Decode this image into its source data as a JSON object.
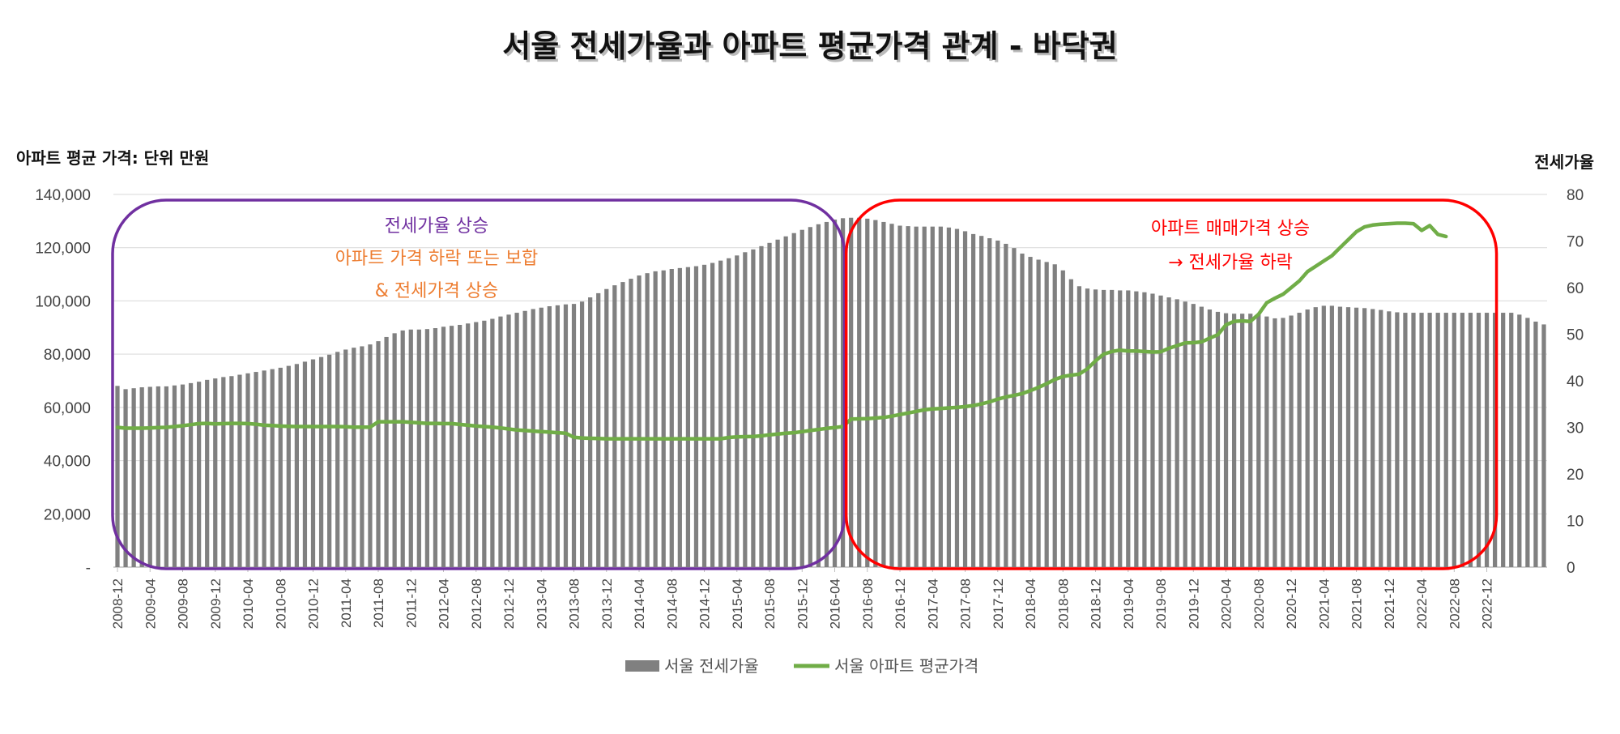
{
  "chart_data": {
    "type": "bar+line",
    "title": "서울 전세가율과 아파트 평균가격 관계 - 바닥권",
    "ylabel_left": "아파트 평균 가격: 단위 만원",
    "ylabel_right": "전세가율",
    "ylim_left": [
      0,
      140000
    ],
    "ylim_right": [
      0,
      80
    ],
    "left_ticks": [
      "-",
      "20,000",
      "40,000",
      "60,000",
      "80,000",
      "100,000",
      "120,000",
      "140,000"
    ],
    "right_ticks": [
      "0",
      "10",
      "20",
      "30",
      "40",
      "50",
      "60",
      "70",
      "80"
    ],
    "x_start": "2008-12",
    "x_tick_labels": [
      "2008-12",
      "2009-04",
      "2009-08",
      "2009-12",
      "2010-04",
      "2010-08",
      "2010-12",
      "2011-04",
      "2011-08",
      "2011-12",
      "2012-04",
      "2012-08",
      "2012-12",
      "2013-04",
      "2013-08",
      "2013-12",
      "2014-04",
      "2014-08",
      "2014-12",
      "2015-04",
      "2015-08",
      "2015-12",
      "2016-04",
      "2016-08",
      "2016-12",
      "2017-04",
      "2017-08",
      "2017-12",
      "2018-04",
      "2018-08",
      "2018-12",
      "2019-04",
      "2019-08",
      "2019-12",
      "2020-04",
      "2020-08",
      "2020-12",
      "2021-04",
      "2021-08",
      "2021-12",
      "2022-04",
      "2022-08",
      "2022-12"
    ],
    "grid": true,
    "legend_position": "bottom",
    "series": [
      {
        "name": "서울 전세가율",
        "kind": "bar",
        "axis": "right",
        "color": "#808080",
        "values": [
          38.9,
          38.2,
          38.4,
          38.6,
          38.7,
          38.8,
          38.8,
          39.0,
          39.2,
          39.5,
          39.8,
          40.2,
          40.5,
          40.8,
          41.0,
          41.3,
          41.6,
          41.9,
          42.2,
          42.5,
          42.8,
          43.2,
          43.6,
          44.1,
          44.6,
          45.1,
          45.6,
          46.2,
          46.7,
          47.1,
          47.4,
          47.8,
          48.5,
          49.4,
          50.2,
          50.8,
          51.0,
          51.0,
          51.1,
          51.3,
          51.6,
          51.8,
          52.0,
          52.3,
          52.6,
          52.9,
          53.3,
          53.8,
          54.2,
          54.6,
          55.0,
          55.4,
          55.7,
          56.0,
          56.2,
          56.4,
          56.5,
          57.0,
          57.9,
          58.8,
          59.7,
          60.5,
          61.2,
          61.9,
          62.6,
          63.1,
          63.5,
          63.7,
          64.0,
          64.2,
          64.4,
          64.6,
          64.9,
          65.3,
          65.8,
          66.3,
          66.9,
          67.6,
          68.2,
          68.9,
          69.6,
          70.3,
          71.0,
          71.7,
          72.4,
          73.0,
          73.6,
          74.1,
          74.6,
          74.9,
          75.0,
          75.0,
          74.8,
          74.5,
          74.1,
          73.7,
          73.3,
          73.2,
          73.1,
          73.1,
          73.1,
          73.1,
          72.9,
          72.6,
          72.1,
          71.5,
          71.1,
          70.6,
          70.1,
          69.4,
          68.5,
          67.3,
          66.6,
          66.0,
          65.5,
          65.0,
          63.7,
          61.8,
          60.3,
          59.8,
          59.6,
          59.5,
          59.5,
          59.4,
          59.4,
          59.2,
          59.0,
          58.7,
          58.3,
          57.9,
          57.5,
          57.0,
          56.5,
          55.9,
          55.3,
          54.8,
          54.5,
          54.4,
          54.4,
          54.4,
          54.2,
          53.8,
          53.4,
          53.5,
          54.0,
          54.6,
          55.3,
          55.8,
          56.1,
          56.1,
          55.9,
          55.8,
          55.7,
          55.6,
          55.4,
          55.2,
          54.9,
          54.7,
          54.6,
          54.6,
          54.6,
          54.6,
          54.6,
          54.6,
          54.6,
          54.6,
          54.6,
          54.6,
          54.6,
          54.6,
          54.6,
          54.6,
          54.2,
          53.5,
          52.7,
          52.1
        ]
      },
      {
        "name": "서울 아파트 평균가격",
        "kind": "line",
        "axis": "left",
        "color": "#70AD47",
        "values": [
          52500,
          52200,
          52200,
          52200,
          52300,
          52400,
          52500,
          52800,
          53100,
          53500,
          53900,
          54000,
          53800,
          53900,
          54000,
          54000,
          53900,
          53700,
          53300,
          53200,
          53000,
          52900,
          52800,
          52800,
          52800,
          52800,
          52800,
          52800,
          52700,
          52600,
          52600,
          52600,
          54600,
          54600,
          54600,
          54600,
          54400,
          54200,
          54000,
          54000,
          53900,
          53900,
          53600,
          53300,
          53000,
          52800,
          52600,
          52300,
          51900,
          51500,
          51300,
          51100,
          50900,
          50700,
          50500,
          50300,
          48800,
          48500,
          48400,
          48300,
          48200,
          48200,
          48200,
          48200,
          48200,
          48200,
          48200,
          48200,
          48200,
          48200,
          48200,
          48200,
          48200,
          48200,
          48200,
          48700,
          48900,
          49000,
          49100,
          49300,
          49700,
          50000,
          50300,
          50500,
          50900,
          51300,
          51700,
          52100,
          52400,
          52800,
          55600,
          55700,
          55800,
          56000,
          56200,
          56700,
          57300,
          57900,
          58500,
          59100,
          59400,
          59600,
          59800,
          60000,
          60300,
          60700,
          61300,
          62100,
          63100,
          63900,
          64500,
          65200,
          66300,
          67500,
          68900,
          70500,
          71600,
          72100,
          72500,
          74500,
          77500,
          80000,
          81000,
          81500,
          81200,
          81200,
          81000,
          80800,
          80900,
          82200,
          83200,
          84200,
          84300,
          84600,
          86000,
          87300,
          91000,
          92300,
          92500,
          92300,
          95000,
          99300,
          101000,
          102500,
          105000,
          107500,
          111000,
          113000,
          115000,
          117000,
          120000,
          123000,
          126000,
          127800,
          128500,
          128800,
          129000,
          129200,
          129200,
          129000,
          126500,
          128300,
          125000,
          124200
        ]
      }
    ],
    "annotations": [
      {
        "text": "전세가율 상승",
        "color": "#7030A0"
      },
      {
        "text": "아파트 가격 하락 또는 보합",
        "color": "#ED7D31"
      },
      {
        "text": "& 전세가격 상승",
        "color": "#ED7D31"
      },
      {
        "text": "아파트 매매가격 상승",
        "color": "#FF0000"
      },
      {
        "text": "→ 전세가율 하락",
        "color": "#FF0000"
      }
    ],
    "highlight_boxes": [
      {
        "from": "2008-12",
        "to": "2016-04",
        "color": "#7030A0"
      },
      {
        "from": "2016-06",
        "to": "2022-12",
        "color": "#FF0000"
      }
    ]
  }
}
